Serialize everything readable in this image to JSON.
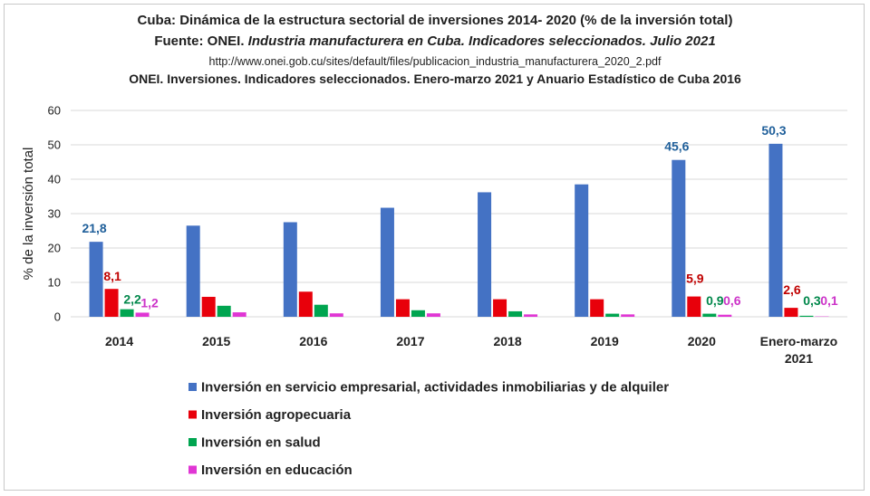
{
  "header": {
    "title": "Cuba: Dinámica de la estructura sectorial de inversiones 2014- 2020 (% de la inversión total)",
    "source_prefix": "Fuente: ONEI. ",
    "source_italic": "Industria manufacturera en Cuba. Indicadores seleccionados. Julio 2021",
    "url": "http://www.onei.gob.cu/sites/default/files/publicacion_industria_manufacturera_2020_2.pdf",
    "source2": "ONEI. Inversiones. Indicadores seleccionados. Enero-marzo 2021 y Anuario Estadístico de Cuba 2016"
  },
  "chart_data": {
    "type": "bar",
    "categories": [
      [
        "2014"
      ],
      [
        "2015"
      ],
      [
        "2016"
      ],
      [
        "2017"
      ],
      [
        "2018"
      ],
      [
        "2019"
      ],
      [
        "2020"
      ],
      [
        "Enero-marzo",
        "2021"
      ]
    ],
    "ylabel": "% de la inversión total",
    "ylim": [
      0,
      60
    ],
    "yticks": [
      0,
      10,
      20,
      30,
      40,
      50,
      60
    ],
    "grid": true,
    "legend": "bottom",
    "series": [
      {
        "name": "Inversión en servicio empresarial, actividades inmobiliarias y de alquiler",
        "color": "#4472C4",
        "label_color": "#1F5F9A",
        "values": [
          21.8,
          26.5,
          27.5,
          31.7,
          36.2,
          38.5,
          45.6,
          50.3
        ],
        "labels": [
          "21,8",
          null,
          null,
          null,
          null,
          null,
          "45,6",
          "50,3"
        ]
      },
      {
        "name": "Inversión agropecuaria",
        "color": "#E8000B",
        "label_color": "#C00000",
        "values": [
          8.1,
          5.8,
          7.3,
          5.1,
          5.1,
          5.1,
          5.9,
          2.6
        ],
        "labels": [
          "8,1",
          null,
          null,
          null,
          null,
          null,
          "5,9",
          "2,6"
        ]
      },
      {
        "name": "Inversión en salud",
        "color": "#00A550",
        "label_color": "#00874A",
        "values": [
          2.2,
          3.2,
          3.5,
          1.9,
          1.6,
          0.9,
          0.9,
          0.3
        ],
        "labels": [
          "2,2",
          null,
          null,
          null,
          null,
          null,
          "0,9",
          "0,3"
        ]
      },
      {
        "name": "Inversión en educación",
        "color": "#E036D4",
        "label_color": "#CC33C8",
        "values": [
          1.2,
          1.3,
          1.0,
          1.0,
          0.7,
          0.7,
          0.6,
          0.1
        ],
        "labels": [
          "1,2",
          null,
          null,
          null,
          null,
          null,
          "0,6",
          "0,1"
        ]
      }
    ]
  }
}
